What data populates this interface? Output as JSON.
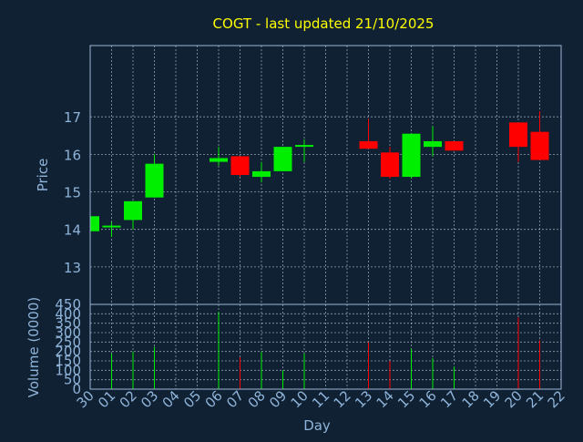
{
  "chart_data": {
    "type": "candlestick",
    "title": "COGT - last updated 21/10/2025",
    "xlabel": "Day",
    "colors": {
      "background": "#0f2133",
      "title": "#ffff00",
      "axis_text": "#8fb3d9",
      "frame": "#9bb8d6",
      "grid": "#b8c8d8",
      "up": "#00ee00",
      "down": "#ff0000"
    },
    "x_tick_labels": [
      "30",
      "01",
      "02",
      "03",
      "04",
      "05",
      "06",
      "07",
      "08",
      "09",
      "10",
      "11",
      "12",
      "13",
      "14",
      "15",
      "16",
      "17",
      "18",
      "19",
      "20",
      "21",
      "22"
    ],
    "price_panel": {
      "ylabel": "Price",
      "ylim": [
        12.0,
        18.9
      ],
      "yticks": [
        13,
        14,
        15,
        16,
        17
      ],
      "candles": [
        {
          "x": "30",
          "open": 13.95,
          "high": 14.35,
          "low": 13.95,
          "close": 14.35
        },
        {
          "x": "01",
          "open": 14.1,
          "high": 14.2,
          "low": 13.8,
          "close": 14.1
        },
        {
          "x": "02",
          "open": 14.25,
          "high": 14.75,
          "low": 14.0,
          "close": 14.75
        },
        {
          "x": "03",
          "open": 14.85,
          "high": 16.0,
          "low": 14.85,
          "close": 15.75
        },
        {
          "x": "06",
          "open": 15.8,
          "high": 16.2,
          "low": 15.7,
          "close": 15.9
        },
        {
          "x": "07",
          "open": 15.95,
          "high": 15.95,
          "low": 15.4,
          "close": 15.45
        },
        {
          "x": "08",
          "open": 15.4,
          "high": 15.8,
          "low": 15.25,
          "close": 15.55
        },
        {
          "x": "09",
          "open": 15.55,
          "high": 16.2,
          "low": 15.55,
          "close": 16.2
        },
        {
          "x": "10",
          "open": 16.25,
          "high": 16.4,
          "low": 15.8,
          "close": 16.25
        },
        {
          "x": "13",
          "open": 16.35,
          "high": 16.95,
          "low": 16.15,
          "close": 16.15
        },
        {
          "x": "14",
          "open": 16.05,
          "high": 16.2,
          "low": 15.35,
          "close": 15.4
        },
        {
          "x": "15",
          "open": 15.4,
          "high": 16.55,
          "low": 15.35,
          "close": 16.55
        },
        {
          "x": "16",
          "open": 16.2,
          "high": 16.75,
          "low": 15.95,
          "close": 16.35
        },
        {
          "x": "17",
          "open": 16.35,
          "high": 16.35,
          "low": 16.1,
          "close": 16.1
        },
        {
          "x": "20",
          "open": 16.85,
          "high": 16.85,
          "low": 15.8,
          "close": 16.2
        },
        {
          "x": "21",
          "open": 16.6,
          "high": 17.15,
          "low": 15.85,
          "close": 15.85
        }
      ]
    },
    "volume_panel": {
      "ylabel": "Volume (0000)",
      "ylim": [
        0,
        450
      ],
      "yticks": [
        0,
        50,
        100,
        150,
        200,
        250,
        300,
        350,
        400,
        450
      ],
      "bars": [
        {
          "x": "01",
          "value": 190,
          "dir": "up"
        },
        {
          "x": "02",
          "value": 200,
          "dir": "up"
        },
        {
          "x": "03",
          "value": 225,
          "dir": "up"
        },
        {
          "x": "06",
          "value": 410,
          "dir": "up"
        },
        {
          "x": "07",
          "value": 170,
          "dir": "down"
        },
        {
          "x": "08",
          "value": 200,
          "dir": "up"
        },
        {
          "x": "09",
          "value": 100,
          "dir": "up"
        },
        {
          "x": "10",
          "value": 190,
          "dir": "up"
        },
        {
          "x": "13",
          "value": 250,
          "dir": "down"
        },
        {
          "x": "14",
          "value": 150,
          "dir": "down"
        },
        {
          "x": "15",
          "value": 215,
          "dir": "up"
        },
        {
          "x": "16",
          "value": 165,
          "dir": "up"
        },
        {
          "x": "17",
          "value": 120,
          "dir": "up"
        },
        {
          "x": "20",
          "value": 380,
          "dir": "down"
        },
        {
          "x": "21",
          "value": 260,
          "dir": "down"
        }
      ]
    }
  }
}
